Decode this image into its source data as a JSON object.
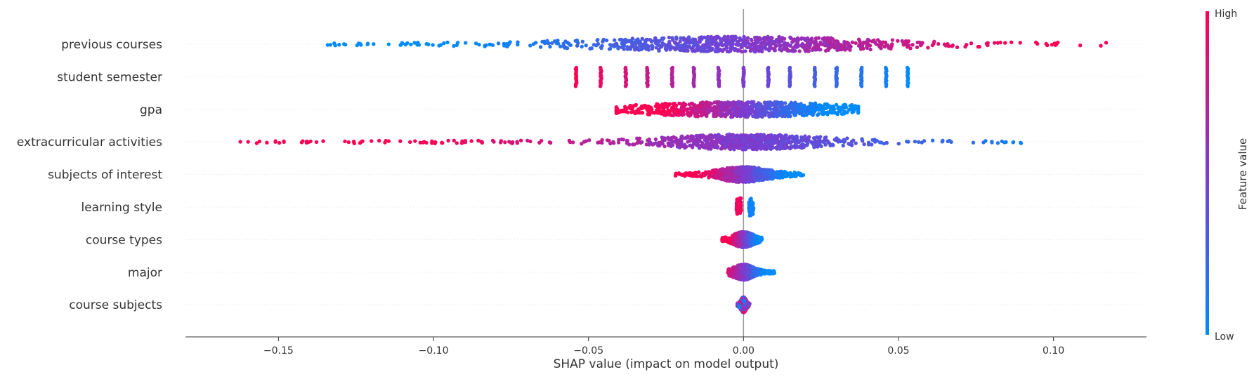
{
  "chart_data": {
    "type": "scatter",
    "subtype": "shap-beeswarm",
    "title": "",
    "xlabel": "SHAP value (impact on model output)",
    "ylabel": "",
    "xlim": [
      -0.18,
      0.13
    ],
    "x_ticks": [
      -0.15,
      -0.1,
      -0.05,
      0.0,
      0.05,
      0.1
    ],
    "x_tick_labels": [
      "−0.15",
      "−0.10",
      "−0.05",
      "0.00",
      "0.05",
      "0.10"
    ],
    "zero_line": 0.0,
    "grid": false,
    "row_guides": "dotted",
    "features": [
      {
        "name": "previous courses",
        "shap_min": -0.14,
        "shap_max": 0.117,
        "core_spread": 0.055,
        "color_trend": "high-positive",
        "pattern": "continuous"
      },
      {
        "name": "student semester",
        "shap_min": -0.054,
        "shap_max": 0.053,
        "color_trend": "high-negative",
        "pattern": "discrete",
        "levels": [
          -0.054,
          -0.046,
          -0.038,
          -0.031,
          -0.023,
          -0.016,
          -0.008,
          0.0,
          0.008,
          0.015,
          0.023,
          0.03,
          0.038,
          0.046,
          0.053
        ]
      },
      {
        "name": "gpa",
        "shap_min": -0.041,
        "shap_max": 0.037,
        "core_spread": 0.039,
        "color_trend": "high-negative",
        "pattern": "continuous"
      },
      {
        "name": "extracurricular activities",
        "shap_min": -0.164,
        "shap_max": 0.09,
        "core_spread": 0.03,
        "color_trend": "high-negative",
        "pattern": "continuous"
      },
      {
        "name": "subjects of interest",
        "shap_min": -0.022,
        "shap_max": 0.02,
        "core_spread": 0.01,
        "color_trend": "high-negative",
        "pattern": "continuous"
      },
      {
        "name": "learning style",
        "shap_min": -0.002,
        "shap_max": 0.003,
        "core_spread": 0.002,
        "color_trend": "high-negative",
        "pattern": "binary"
      },
      {
        "name": "course types",
        "shap_min": -0.007,
        "shap_max": 0.006,
        "core_spread": 0.004,
        "color_trend": "high-negative",
        "pattern": "continuous"
      },
      {
        "name": "major",
        "shap_min": -0.005,
        "shap_max": 0.01,
        "core_spread": 0.004,
        "color_trend": "high-negative",
        "pattern": "continuous"
      },
      {
        "name": "course subjects",
        "shap_min": -0.002,
        "shap_max": 0.002,
        "core_spread": 0.001,
        "color_trend": "mixed",
        "pattern": "continuous"
      }
    ],
    "colorbar": {
      "label": "Feature value",
      "high_label": "High",
      "low_label": "Low",
      "high_color": "#ff0052",
      "low_color": "#008bfb"
    },
    "colors": {
      "high": "#ff0052",
      "low": "#008bfb",
      "zero_line": "#999999",
      "axis": "#333333",
      "text": "#333333",
      "guide": "#e6e6e6"
    }
  }
}
